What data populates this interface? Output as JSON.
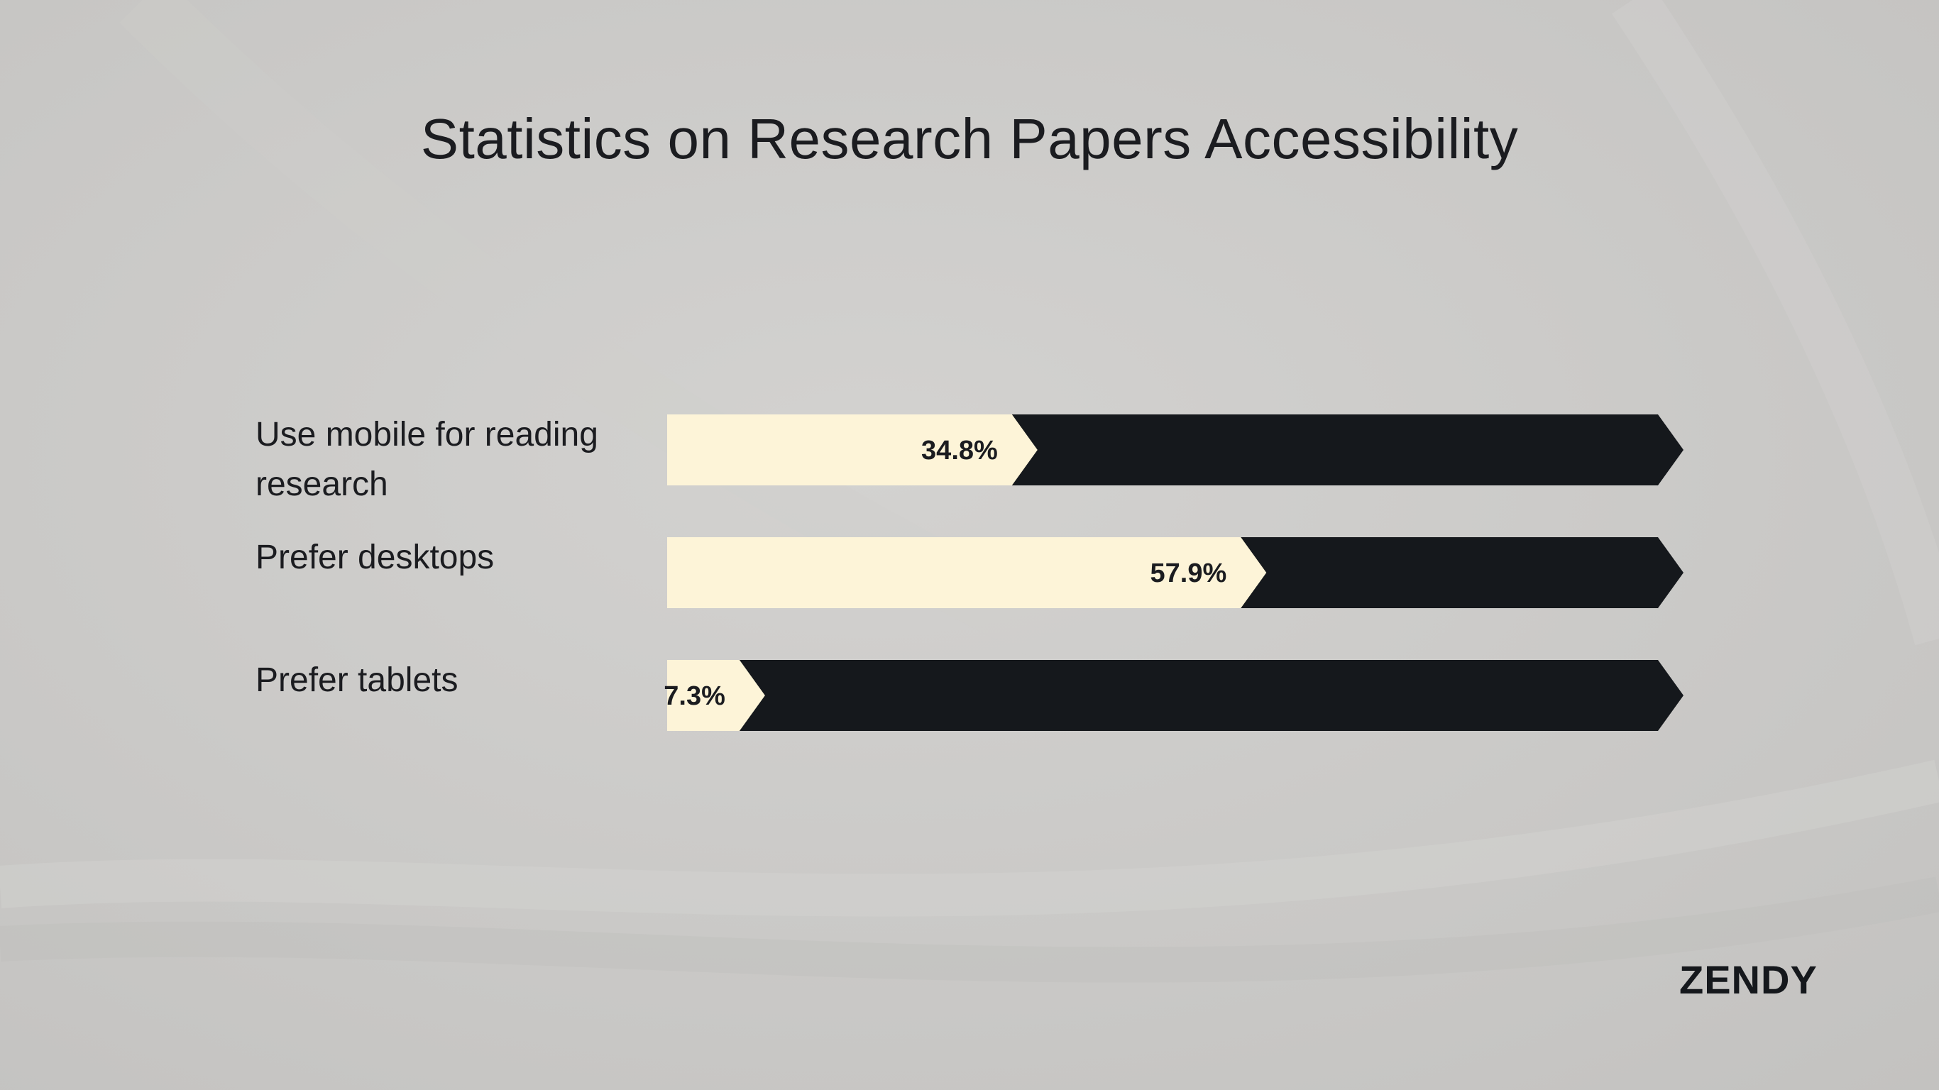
{
  "title": "Statistics on Research Papers Accessibility",
  "brand": "ZENDY",
  "colors": {
    "fill": "#fdf4d8",
    "remainder": "#15181c",
    "text": "#1b1c20",
    "background": "#cac9c7"
  },
  "chart_data": {
    "type": "bar",
    "orientation": "horizontal",
    "title": "Statistics on Research Papers Accessibility",
    "xlabel": "",
    "ylabel": "",
    "xlim": [
      0,
      100
    ],
    "grid": false,
    "categories": [
      [
        "Use mobile for reading",
        "research"
      ],
      [
        "Prefer desktops"
      ],
      [
        "Prefer tablets"
      ]
    ],
    "values": [
      34.8,
      57.9,
      7.3
    ],
    "value_labels": [
      "34.8%",
      "57.9%",
      "7.3%"
    ]
  }
}
